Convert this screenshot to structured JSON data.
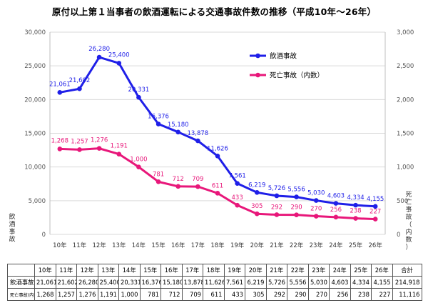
{
  "chart_data": {
    "type": "line",
    "title": "原付以上第１当事者の飲酒運転による交通事故件数の推移（平成10年～26年）",
    "categories": [
      "10年",
      "11年",
      "12年",
      "13年",
      "14年",
      "15年",
      "16年",
      "17年",
      "18年",
      "19年",
      "20年",
      "21年",
      "22年",
      "23年",
      "24年",
      "25年",
      "26年"
    ],
    "ylabel_left": "飲酒事故",
    "ylabel_right": "死亡事故（内数）",
    "ylim_left": [
      0,
      30000
    ],
    "ylim_right": [
      0,
      3000
    ],
    "yticks_left": [
      "0",
      "5,000",
      "10,000",
      "15,000",
      "20,000",
      "25,000",
      "30,000"
    ],
    "yticks_right": [
      "0",
      "500",
      "1,000",
      "1,500",
      "2,000",
      "2,500",
      "3,000"
    ],
    "legend_position": "top-right",
    "series": [
      {
        "name": "飲酒事故",
        "axis": "left",
        "color": "#1f1fe8",
        "values": [
          21061,
          21602,
          26280,
          25400,
          20331,
          16376,
          15180,
          13878,
          11626,
          7561,
          6219,
          5726,
          5556,
          5030,
          4603,
          4334,
          4155
        ],
        "labels": [
          "21,061",
          "21,602",
          "26,280",
          "25,400",
          "20,331",
          "16,376",
          "15,180",
          "13,878",
          "11,626",
          "7,561",
          "6,219",
          "5,726",
          "5,556",
          "5,030",
          "4,603",
          "4,334",
          "4,155"
        ]
      },
      {
        "name": "死亡事故（内数）",
        "axis": "right",
        "color": "#e8177a",
        "values": [
          1268,
          1257,
          1276,
          1191,
          1000,
          781,
          712,
          709,
          611,
          433,
          305,
          292,
          290,
          270,
          256,
          238,
          227
        ],
        "labels": [
          "1,268",
          "1,257",
          "1,276",
          "1,191",
          "1,000",
          "781",
          "712",
          "709",
          "611",
          "433",
          "305",
          "292",
          "290",
          "270",
          "256",
          "238",
          "227"
        ]
      }
    ]
  },
  "table": {
    "headers": [
      "10年",
      "11年",
      "12年",
      "13年",
      "14年",
      "15年",
      "16年",
      "17年",
      "18年",
      "19年",
      "20年",
      "21年",
      "22年",
      "23年",
      "24年",
      "25年",
      "26年",
      "合計"
    ],
    "rows": [
      {
        "label": "飲酒事故",
        "cells": [
          "21,061",
          "21,602",
          "26,280",
          "25,400",
          "20,331",
          "16,376",
          "15,180",
          "13,878",
          "11,626",
          "7,561",
          "6,219",
          "5,726",
          "5,556",
          "5,030",
          "4,603",
          "4,334",
          "4,155",
          "214,918"
        ]
      },
      {
        "label": "死亡事故(内数)",
        "cells": [
          "1,268",
          "1,257",
          "1,276",
          "1,191",
          "1,000",
          "781",
          "712",
          "709",
          "611",
          "433",
          "305",
          "292",
          "290",
          "270",
          "256",
          "238",
          "227",
          "11,116"
        ]
      }
    ]
  }
}
